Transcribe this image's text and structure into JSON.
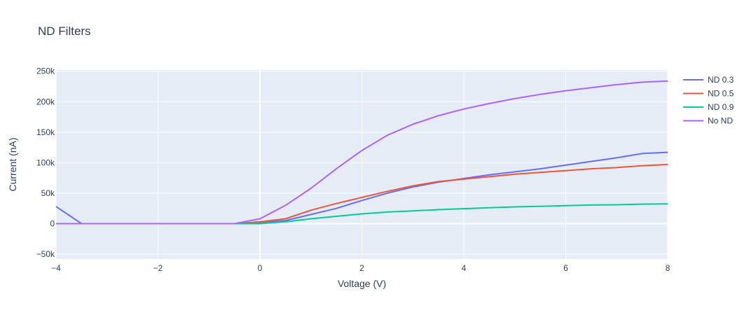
{
  "chart_data": {
    "type": "line",
    "title": "ND Filters",
    "xlabel": "Voltage (V)",
    "ylabel": "Current (nA)",
    "xlim": [
      -4,
      8
    ],
    "ylim": [
      -58000,
      252000
    ],
    "x_ticks": [
      -4,
      -2,
      0,
      2,
      4,
      6,
      8
    ],
    "x_tick_labels": [
      "−4",
      "−2",
      "0",
      "2",
      "4",
      "6",
      "8"
    ],
    "y_ticks": [
      -50000,
      0,
      50000,
      100000,
      150000,
      200000,
      250000
    ],
    "y_tick_labels": [
      "−50k",
      "0",
      "50k",
      "100k",
      "150k",
      "200k",
      "250k"
    ],
    "grid": true,
    "legend_position": "right",
    "plot_bgcolor": "#e5ecf6",
    "series": [
      {
        "name": "ND 0.3",
        "color": "#636efa",
        "x": [
          -4,
          -3.5,
          -3,
          -2.5,
          -2,
          -1.5,
          -1,
          -0.5,
          0,
          0.5,
          1,
          1.5,
          2,
          2.5,
          3,
          3.5,
          4,
          4.5,
          5,
          5.5,
          6,
          6.5,
          7,
          7.5,
          8
        ],
        "y": [
          28000,
          0,
          0,
          0,
          0,
          0,
          0,
          0,
          2000,
          5000,
          15000,
          25000,
          38000,
          50000,
          60000,
          68000,
          74000,
          80000,
          85000,
          90000,
          96000,
          102000,
          108000,
          115000,
          117000
        ]
      },
      {
        "name": "ND 0.5",
        "color": "#ef553b",
        "x": [
          -4,
          -3.5,
          -3,
          -2.5,
          -2,
          -1.5,
          -1,
          -0.5,
          0,
          0.5,
          1,
          1.5,
          2,
          2.5,
          3,
          3.5,
          4,
          4.5,
          5,
          5.5,
          6,
          6.5,
          7,
          7.5,
          8
        ],
        "y": [
          0,
          0,
          0,
          0,
          0,
          0,
          0,
          0,
          3000,
          8000,
          22000,
          33000,
          43000,
          53000,
          62000,
          69000,
          73000,
          77000,
          81000,
          84000,
          87000,
          90000,
          92000,
          95000,
          97000
        ]
      },
      {
        "name": "ND 0.9",
        "color": "#00cc96",
        "x": [
          -4,
          -3.5,
          -3,
          -2.5,
          -2,
          -1.5,
          -1,
          -0.5,
          0,
          0.5,
          1,
          1.5,
          2,
          2.5,
          3,
          3.5,
          4,
          4.5,
          5,
          5.5,
          6,
          6.5,
          7,
          7.5,
          8
        ],
        "y": [
          0,
          0,
          0,
          0,
          0,
          0,
          0,
          0,
          0,
          3000,
          8000,
          12000,
          16000,
          19000,
          21000,
          23000,
          24500,
          26000,
          27500,
          28500,
          29500,
          30500,
          31000,
          32000,
          32500
        ]
      },
      {
        "name": "No ND",
        "color": "#ab63fa",
        "x": [
          -4,
          -3.5,
          -3,
          -2.5,
          -2,
          -1.5,
          -1,
          -0.5,
          0,
          0.5,
          1,
          1.5,
          2,
          2.5,
          3,
          3.5,
          4,
          4.5,
          5,
          5.5,
          6,
          6.5,
          7,
          7.5,
          8
        ],
        "y": [
          0,
          0,
          0,
          0,
          0,
          0,
          0,
          0,
          8000,
          30000,
          58000,
          90000,
          120000,
          145000,
          163000,
          177000,
          188000,
          197000,
          205000,
          212000,
          218000,
          223000,
          228000,
          232000,
          234000
        ]
      }
    ]
  }
}
